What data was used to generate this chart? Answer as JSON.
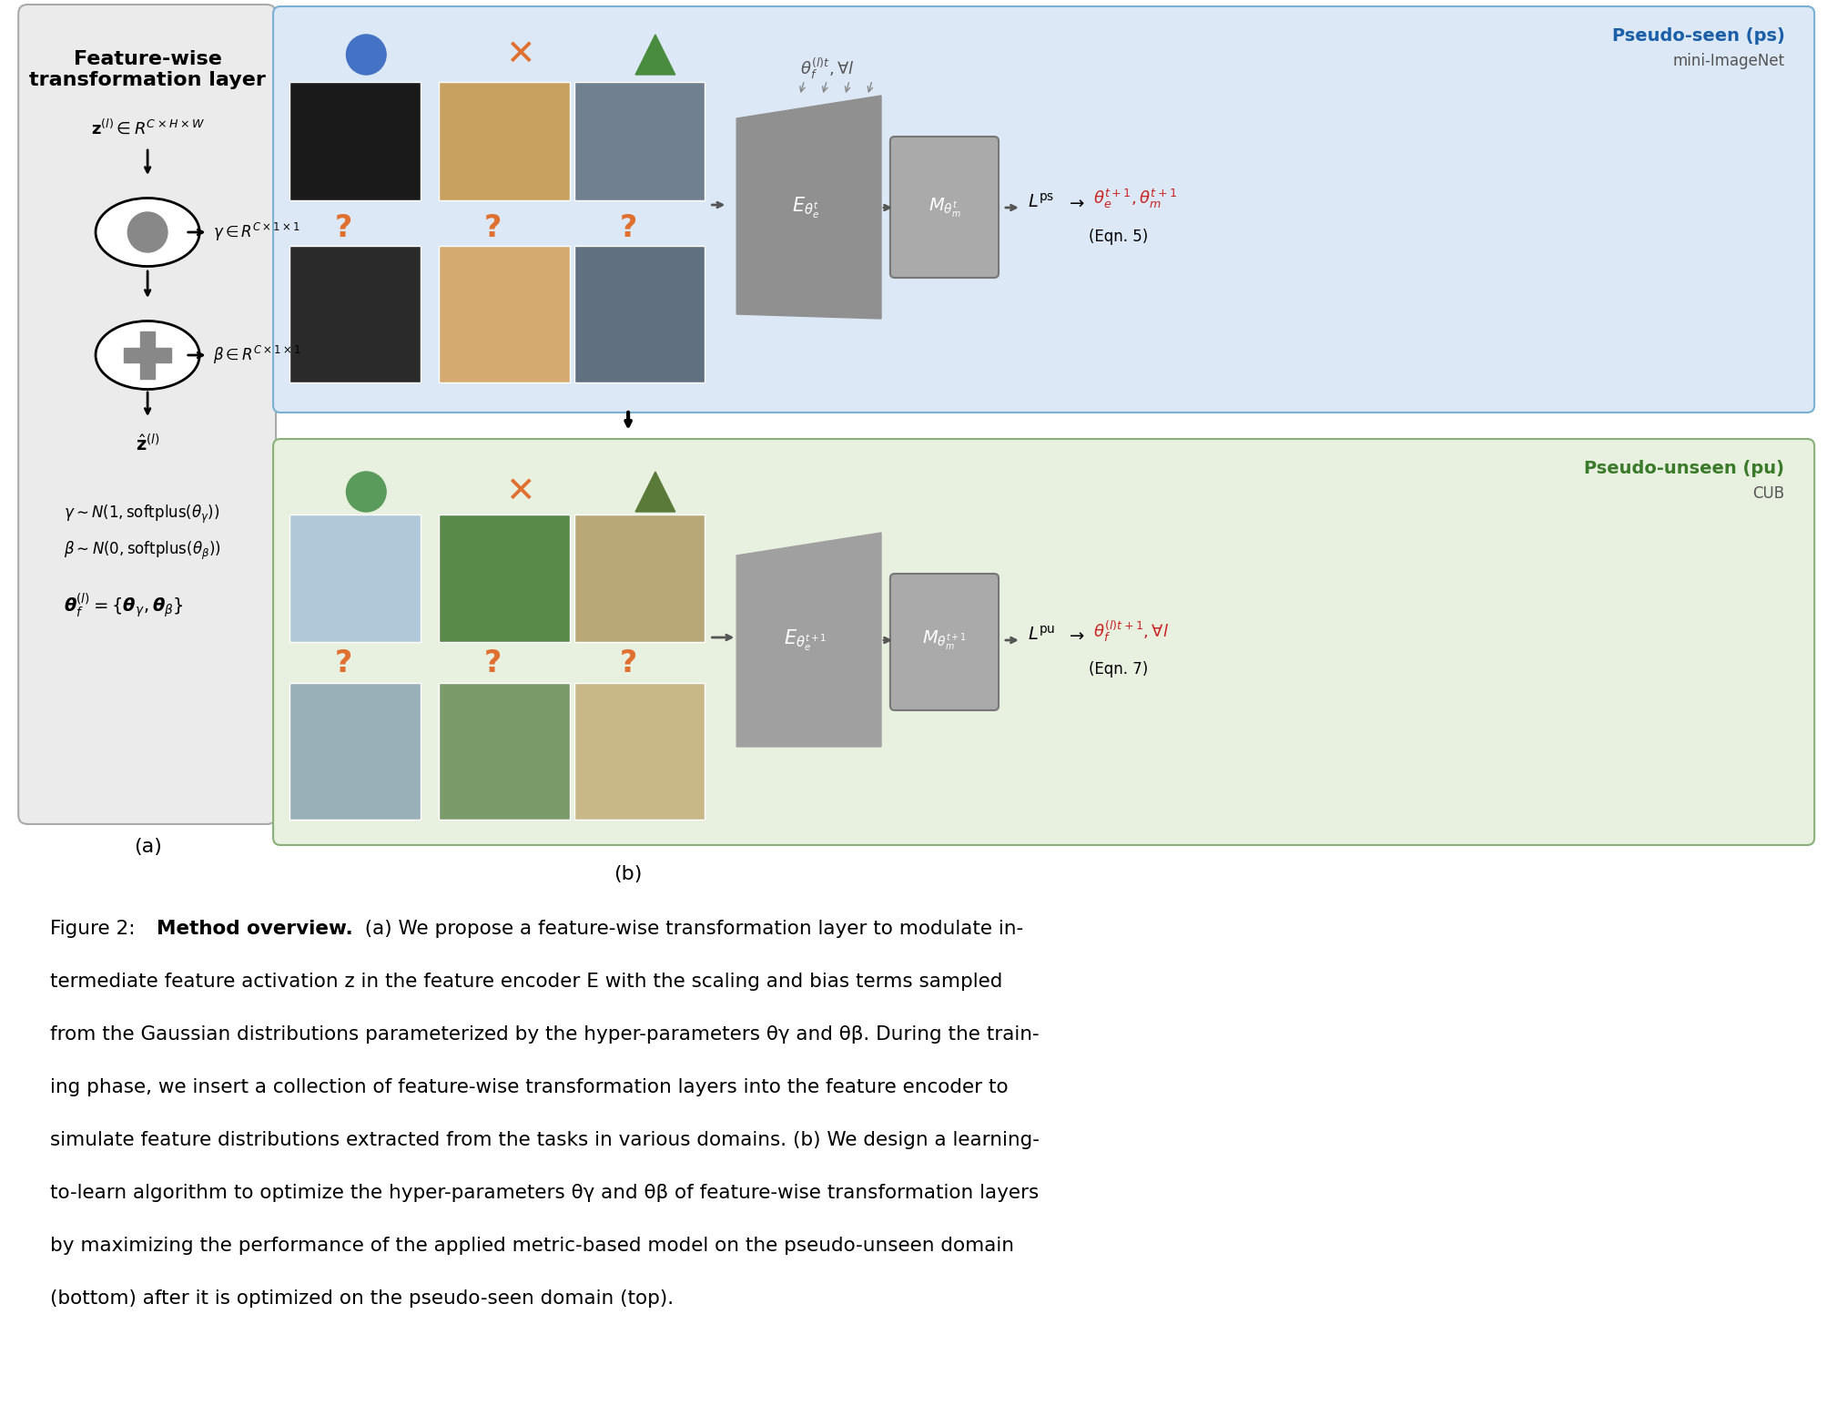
{
  "bg_color": "#ffffff",
  "panel_a_bg": "#e8e8e8",
  "panel_b_top_bg": "#dce8f5",
  "panel_b_bottom_bg": "#e8f0e0",
  "figure_caption": "Figure 2: **Method overview.** (a) We propose a feature-wise transformation layer to modulate intermediate feature activation **z** in the feature encoder *E* with the scaling and bias terms sampled from the Gaussian distributions parameterized by the hyper-parameters θγ and θβ. During the training phase, we insert a collection of feature-wise transformation layers into the feature encoder to simulate feature distributions extracted from the tasks in various domains. (b) We design a learning-to-learn algorithm to optimize the hyper-parameters θγ and θβ of feature-wise transformation layers by maximizing the performance of the applied metric-based model on the pseudo-unseen domain (*bottom*) after it is optimized on the pseudo-seen domain (*top*).",
  "title_a": "Feature-wise\ntransformation layer",
  "label_a": "(a)",
  "label_b": "(b)",
  "pseudo_seen_label": "Pseudo-seen (ps)",
  "mini_imagenet_label": "mini-ImageNet",
  "pseudo_unseen_label": "Pseudo-unseen (pu)",
  "cub_label": "CUB"
}
